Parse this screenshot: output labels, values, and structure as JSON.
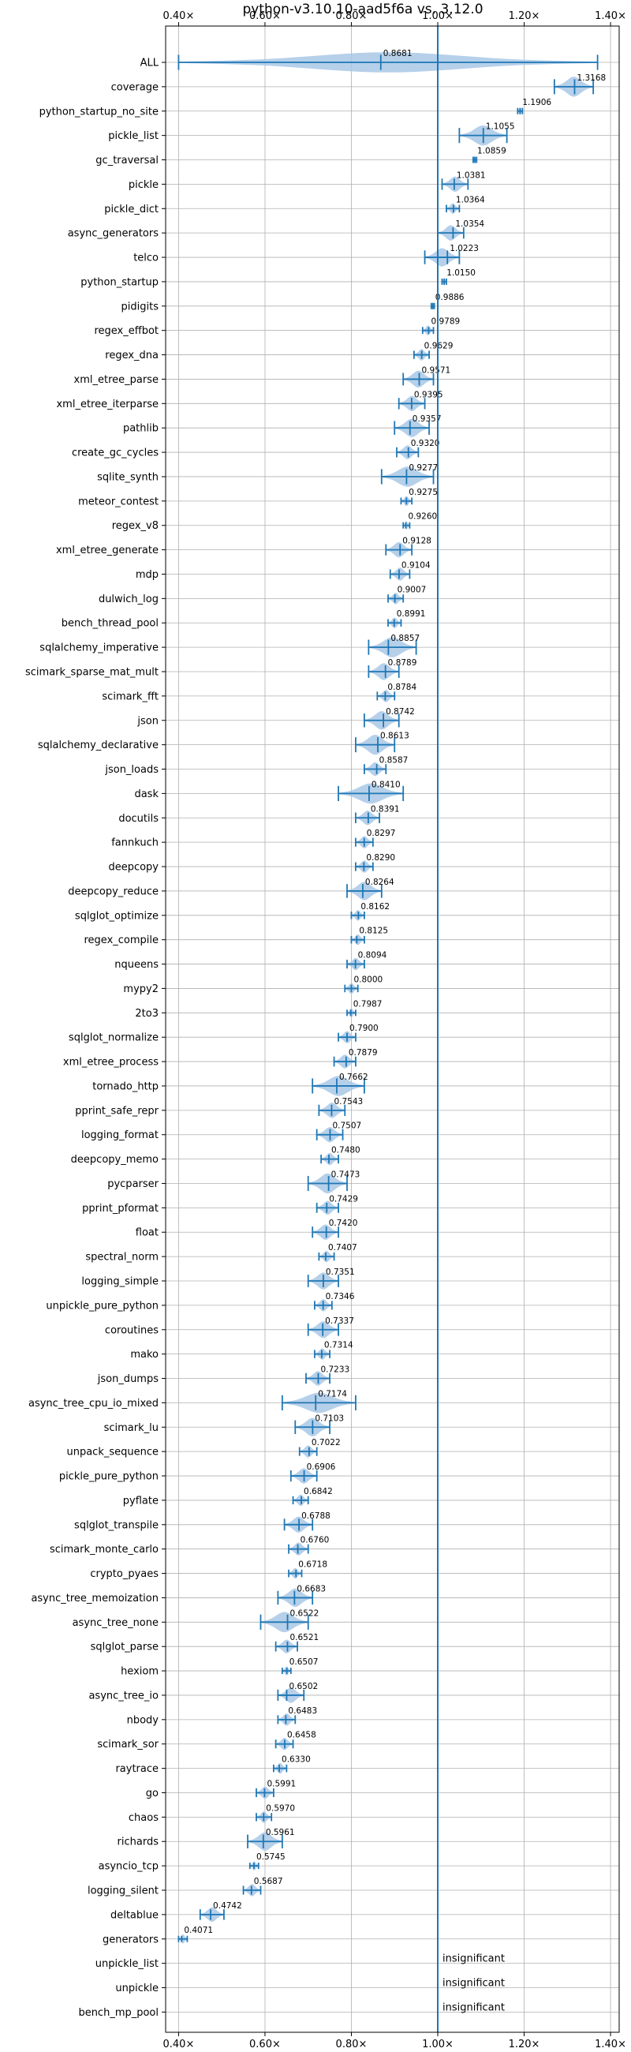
{
  "chart_data": {
    "type": "violin",
    "title": "python-v3.10.10-aad5f6a vs. 3.12.0",
    "orientation": "horizontal",
    "xlim": [
      0.37,
      1.42
    ],
    "xticks": [
      0.4,
      0.6,
      0.8,
      1.0,
      1.2,
      1.4
    ],
    "xtick_labels": [
      "0.40×",
      "0.60×",
      "0.80×",
      "1.00×",
      "1.20×",
      "1.40×"
    ],
    "reference_line": 1.0,
    "grid": true,
    "colors": {
      "violin": "#a9c8e6",
      "line": "#1f77b4",
      "grid": "#b0b0b0"
    },
    "benchmarks": [
      {
        "name": "ALL",
        "value": 0.8681,
        "label": "0.8681",
        "min": 0.4,
        "max": 1.37
      },
      {
        "name": "coverage",
        "value": 1.3168,
        "label": "1.3168",
        "min": 1.27,
        "max": 1.36
      },
      {
        "name": "python_startup_no_site",
        "value": 1.1906,
        "label": "1.1906",
        "min": 1.185,
        "max": 1.196
      },
      {
        "name": "pickle_list",
        "value": 1.1055,
        "label": "1.1055",
        "min": 1.05,
        "max": 1.16
      },
      {
        "name": "gc_traversal",
        "value": 1.0859,
        "label": "1.0859",
        "min": 1.082,
        "max": 1.09
      },
      {
        "name": "pickle",
        "value": 1.0381,
        "label": "1.0381",
        "min": 1.01,
        "max": 1.07
      },
      {
        "name": "pickle_dict",
        "value": 1.0364,
        "label": "1.0364",
        "min": 1.02,
        "max": 1.05
      },
      {
        "name": "async_generators",
        "value": 1.0354,
        "label": "1.0354",
        "min": 1.0,
        "max": 1.06
      },
      {
        "name": "telco",
        "value": 1.0223,
        "label": "1.0223",
        "min": 0.97,
        "max": 1.05
      },
      {
        "name": "python_startup",
        "value": 1.015,
        "label": "1.0150",
        "min": 1.01,
        "max": 1.02
      },
      {
        "name": "pidigits",
        "value": 0.9886,
        "label": "0.9886",
        "min": 0.985,
        "max": 0.992
      },
      {
        "name": "regex_effbot",
        "value": 0.9789,
        "label": "0.9789",
        "min": 0.965,
        "max": 0.99
      },
      {
        "name": "regex_dna",
        "value": 0.9629,
        "label": "0.9629",
        "min": 0.945,
        "max": 0.98
      },
      {
        "name": "xml_etree_parse",
        "value": 0.9571,
        "label": "0.9571",
        "min": 0.92,
        "max": 0.99
      },
      {
        "name": "xml_etree_iterparse",
        "value": 0.9395,
        "label": "0.9395",
        "min": 0.91,
        "max": 0.97
      },
      {
        "name": "pathlib",
        "value": 0.9357,
        "label": "0.9357",
        "min": 0.9,
        "max": 0.98
      },
      {
        "name": "create_gc_cycles",
        "value": 0.932,
        "label": "0.9320",
        "min": 0.905,
        "max": 0.955
      },
      {
        "name": "sqlite_synth",
        "value": 0.9277,
        "label": "0.9277",
        "min": 0.87,
        "max": 0.99
      },
      {
        "name": "meteor_contest",
        "value": 0.9275,
        "label": "0.9275",
        "min": 0.915,
        "max": 0.94
      },
      {
        "name": "regex_v8",
        "value": 0.926,
        "label": "0.9260",
        "min": 0.92,
        "max": 0.935
      },
      {
        "name": "xml_etree_generate",
        "value": 0.9128,
        "label": "0.9128",
        "min": 0.88,
        "max": 0.94
      },
      {
        "name": "mdp",
        "value": 0.9104,
        "label": "0.9104",
        "min": 0.89,
        "max": 0.935
      },
      {
        "name": "dulwich_log",
        "value": 0.9007,
        "label": "0.9007",
        "min": 0.885,
        "max": 0.92
      },
      {
        "name": "bench_thread_pool",
        "value": 0.8991,
        "label": "0.8991",
        "min": 0.885,
        "max": 0.915
      },
      {
        "name": "sqlalchemy_imperative",
        "value": 0.8857,
        "label": "0.8857",
        "min": 0.84,
        "max": 0.95
      },
      {
        "name": "scimark_sparse_mat_mult",
        "value": 0.8789,
        "label": "0.8789",
        "min": 0.84,
        "max": 0.91
      },
      {
        "name": "scimark_fft",
        "value": 0.8784,
        "label": "0.8784",
        "min": 0.86,
        "max": 0.9
      },
      {
        "name": "json",
        "value": 0.8742,
        "label": "0.8742",
        "min": 0.83,
        "max": 0.91
      },
      {
        "name": "sqlalchemy_declarative",
        "value": 0.8613,
        "label": "0.8613",
        "min": 0.81,
        "max": 0.9
      },
      {
        "name": "json_loads",
        "value": 0.8587,
        "label": "0.8587",
        "min": 0.83,
        "max": 0.88
      },
      {
        "name": "dask",
        "value": 0.841,
        "label": "0.8410",
        "min": 0.77,
        "max": 0.92
      },
      {
        "name": "docutils",
        "value": 0.8391,
        "label": "0.8391",
        "min": 0.81,
        "max": 0.865
      },
      {
        "name": "fannkuch",
        "value": 0.8297,
        "label": "0.8297",
        "min": 0.81,
        "max": 0.85
      },
      {
        "name": "deepcopy",
        "value": 0.829,
        "label": "0.8290",
        "min": 0.81,
        "max": 0.85
      },
      {
        "name": "deepcopy_reduce",
        "value": 0.8264,
        "label": "0.8264",
        "min": 0.79,
        "max": 0.87
      },
      {
        "name": "sqlglot_optimize",
        "value": 0.8162,
        "label": "0.8162",
        "min": 0.8,
        "max": 0.83
      },
      {
        "name": "regex_compile",
        "value": 0.8125,
        "label": "0.8125",
        "min": 0.8,
        "max": 0.83
      },
      {
        "name": "nqueens",
        "value": 0.8094,
        "label": "0.8094",
        "min": 0.79,
        "max": 0.83
      },
      {
        "name": "mypy2",
        "value": 0.8,
        "label": "0.8000",
        "min": 0.785,
        "max": 0.815
      },
      {
        "name": "2to3",
        "value": 0.7987,
        "label": "0.7987",
        "min": 0.79,
        "max": 0.81
      },
      {
        "name": "sqlglot_normalize",
        "value": 0.79,
        "label": "0.7900",
        "min": 0.77,
        "max": 0.81
      },
      {
        "name": "xml_etree_process",
        "value": 0.7879,
        "label": "0.7879",
        "min": 0.76,
        "max": 0.81
      },
      {
        "name": "tornado_http",
        "value": 0.7662,
        "label": "0.7662",
        "min": 0.71,
        "max": 0.83
      },
      {
        "name": "pprint_safe_repr",
        "value": 0.7543,
        "label": "0.7543",
        "min": 0.725,
        "max": 0.785
      },
      {
        "name": "logging_format",
        "value": 0.7507,
        "label": "0.7507",
        "min": 0.72,
        "max": 0.78
      },
      {
        "name": "deepcopy_memo",
        "value": 0.748,
        "label": "0.7480",
        "min": 0.73,
        "max": 0.77
      },
      {
        "name": "pycparser",
        "value": 0.7473,
        "label": "0.7473",
        "min": 0.7,
        "max": 0.79
      },
      {
        "name": "pprint_pformat",
        "value": 0.7429,
        "label": "0.7429",
        "min": 0.72,
        "max": 0.77
      },
      {
        "name": "float",
        "value": 0.742,
        "label": "0.7420",
        "min": 0.71,
        "max": 0.77
      },
      {
        "name": "spectral_norm",
        "value": 0.7407,
        "label": "0.7407",
        "min": 0.725,
        "max": 0.76
      },
      {
        "name": "logging_simple",
        "value": 0.7351,
        "label": "0.7351",
        "min": 0.7,
        "max": 0.77
      },
      {
        "name": "unpickle_pure_python",
        "value": 0.7346,
        "label": "0.7346",
        "min": 0.715,
        "max": 0.755
      },
      {
        "name": "coroutines",
        "value": 0.7337,
        "label": "0.7337",
        "min": 0.7,
        "max": 0.77
      },
      {
        "name": "mako",
        "value": 0.7314,
        "label": "0.7314",
        "min": 0.715,
        "max": 0.75
      },
      {
        "name": "json_dumps",
        "value": 0.7233,
        "label": "0.7233",
        "min": 0.695,
        "max": 0.75
      },
      {
        "name": "async_tree_cpu_io_mixed",
        "value": 0.7174,
        "label": "0.7174",
        "min": 0.64,
        "max": 0.81
      },
      {
        "name": "scimark_lu",
        "value": 0.7103,
        "label": "0.7103",
        "min": 0.67,
        "max": 0.75
      },
      {
        "name": "unpack_sequence",
        "value": 0.7022,
        "label": "0.7022",
        "min": 0.68,
        "max": 0.72
      },
      {
        "name": "pickle_pure_python",
        "value": 0.6906,
        "label": "0.6906",
        "min": 0.66,
        "max": 0.72
      },
      {
        "name": "pyflate",
        "value": 0.6842,
        "label": "0.6842",
        "min": 0.665,
        "max": 0.7
      },
      {
        "name": "sqlglot_transpile",
        "value": 0.6788,
        "label": "0.6788",
        "min": 0.645,
        "max": 0.71
      },
      {
        "name": "scimark_monte_carlo",
        "value": 0.676,
        "label": "0.6760",
        "min": 0.655,
        "max": 0.7
      },
      {
        "name": "crypto_pyaes",
        "value": 0.6718,
        "label": "0.6718",
        "min": 0.655,
        "max": 0.685
      },
      {
        "name": "async_tree_memoization",
        "value": 0.6683,
        "label": "0.6683",
        "min": 0.63,
        "max": 0.71
      },
      {
        "name": "async_tree_none",
        "value": 0.6522,
        "label": "0.6522",
        "min": 0.59,
        "max": 0.7
      },
      {
        "name": "sqlglot_parse",
        "value": 0.6521,
        "label": "0.6521",
        "min": 0.625,
        "max": 0.675
      },
      {
        "name": "hexiom",
        "value": 0.6507,
        "label": "0.6507",
        "min": 0.64,
        "max": 0.66
      },
      {
        "name": "async_tree_io",
        "value": 0.6502,
        "label": "0.6502",
        "min": 0.63,
        "max": 0.69
      },
      {
        "name": "nbody",
        "value": 0.6483,
        "label": "0.6483",
        "min": 0.63,
        "max": 0.67
      },
      {
        "name": "scimark_sor",
        "value": 0.6458,
        "label": "0.6458",
        "min": 0.625,
        "max": 0.665
      },
      {
        "name": "raytrace",
        "value": 0.633,
        "label": "0.6330",
        "min": 0.62,
        "max": 0.65
      },
      {
        "name": "go",
        "value": 0.5991,
        "label": "0.5991",
        "min": 0.58,
        "max": 0.62
      },
      {
        "name": "chaos",
        "value": 0.597,
        "label": "0.5970",
        "min": 0.58,
        "max": 0.615
      },
      {
        "name": "richards",
        "value": 0.5961,
        "label": "0.5961",
        "min": 0.56,
        "max": 0.64
      },
      {
        "name": "asyncio_tcp",
        "value": 0.5745,
        "label": "0.5745",
        "min": 0.565,
        "max": 0.585
      },
      {
        "name": "logging_silent",
        "value": 0.5687,
        "label": "0.5687",
        "min": 0.55,
        "max": 0.59
      },
      {
        "name": "deltablue",
        "value": 0.4742,
        "label": "0.4742",
        "min": 0.45,
        "max": 0.505
      },
      {
        "name": "generators",
        "value": 0.4071,
        "label": "0.4071",
        "min": 0.4,
        "max": 0.42
      },
      {
        "name": "unpickle_list",
        "value": null,
        "label": "insignificant"
      },
      {
        "name": "unpickle",
        "value": null,
        "label": "insignificant"
      },
      {
        "name": "bench_mp_pool",
        "value": null,
        "label": "insignificant"
      }
    ]
  }
}
